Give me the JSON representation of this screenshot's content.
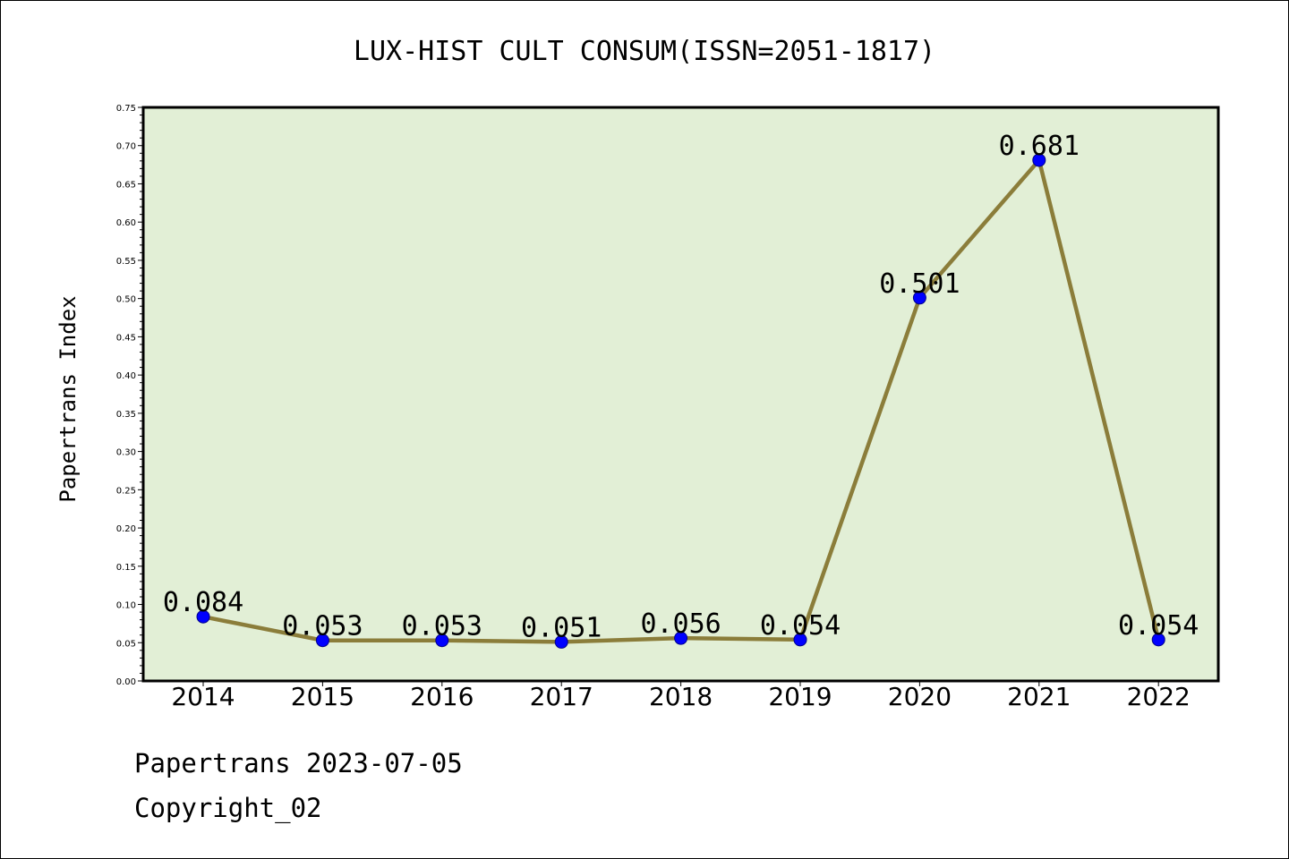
{
  "chart_data": {
    "type": "line",
    "title": "LUX-HIST CULT CONSUM(ISSN=2051-1817)",
    "xlabel": "",
    "ylabel": "Papertrans Index",
    "categories": [
      "2014",
      "2015",
      "2016",
      "2017",
      "2018",
      "2019",
      "2020",
      "2021",
      "2022"
    ],
    "series": [
      {
        "values": [
          0.084,
          0.053,
          0.053,
          0.051,
          0.056,
          0.054,
          0.501,
          0.681,
          0.054
        ]
      }
    ],
    "data_labels": [
      "0.084",
      "0.053",
      "0.053",
      "0.051",
      "0.056",
      "0.054",
      "0.501",
      "0.681",
      "0.054"
    ],
    "ylim": [
      0,
      0.75
    ],
    "y_ticks": [
      "0.00",
      "0.05",
      "0.10",
      "0.15",
      "0.20",
      "0.25",
      "0.30",
      "0.35",
      "0.40",
      "0.45",
      "0.50",
      "0.55",
      "0.60",
      "0.65",
      "0.70",
      "0.75"
    ],
    "grid": false,
    "colors": {
      "plot_background": "#e2efd6",
      "line": "#8b7d3a",
      "marker": "#0000ff"
    }
  },
  "footer": {
    "line1": "Papertrans 2023-07-05",
    "line2": "Copyright_02"
  }
}
